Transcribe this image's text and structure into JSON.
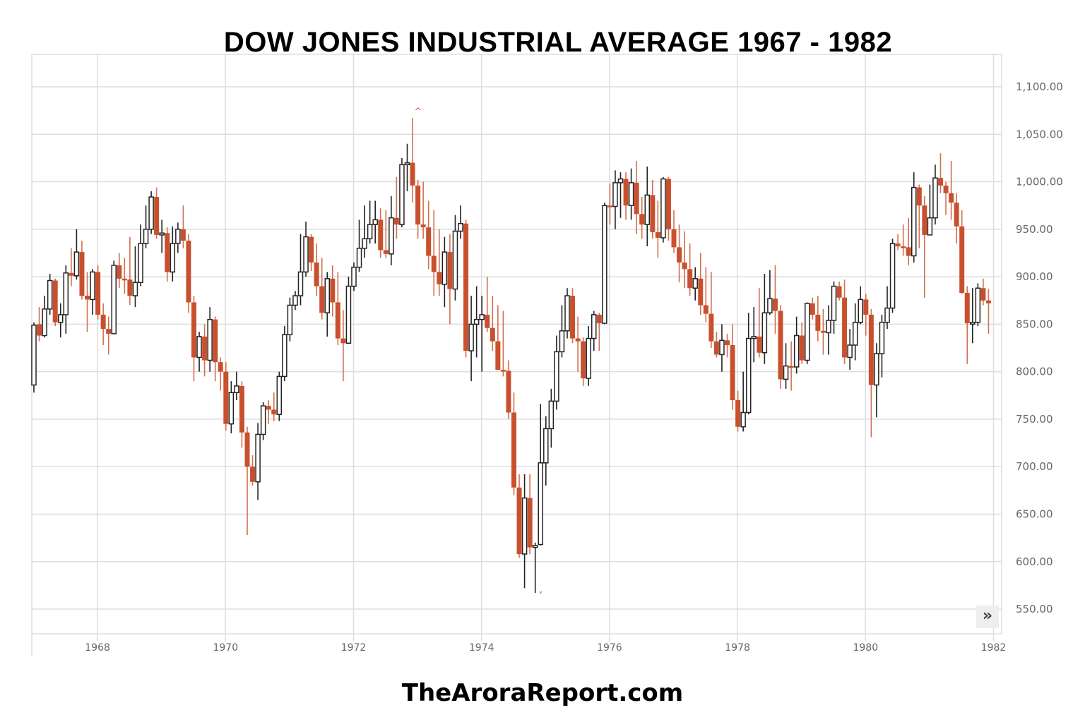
{
  "header": {
    "title": "DOW JONES INDUSTRIAL AVERAGE 1967 - 1982"
  },
  "footer": {
    "text": "TheAroraReport.com"
  },
  "controls": {
    "scroll_right_icon": "double-chevron-right-icon",
    "scroll_right_glyph": "»"
  },
  "colors": {
    "up_stroke": "#222222",
    "up_fill": "#ffffff",
    "down": "#c8502f",
    "down_wick": "#d2704f",
    "grid": "#dddddd",
    "axis_text": "#666666"
  },
  "chart_data": {
    "type": "candlestick",
    "title": "DOW JONES INDUSTRIAL AVERAGE 1967 - 1982",
    "xlabel": "",
    "ylabel": "",
    "interval": "monthly",
    "ylim": [
      530,
      1130
    ],
    "y_ticks": [
      "1,100.00",
      "1,050.00",
      "1,000.00",
      "950.00",
      "900.00",
      "850.00",
      "800.00",
      "750.00",
      "700.00",
      "650.00",
      "600.00",
      "550.00"
    ],
    "y_tick_values": [
      1100,
      1050,
      1000,
      950,
      900,
      850,
      800,
      750,
      700,
      650,
      600,
      550
    ],
    "x_ticks": [
      "1968",
      "1970",
      "1972",
      "1974",
      "1976",
      "1978",
      "1980",
      "1982"
    ],
    "grid": true,
    "annotations": [
      {
        "type": "high-marker",
        "label": "^",
        "near": "1973-01",
        "value": 1067
      },
      {
        "type": "low-marker",
        "label": "˅",
        "near": "1974-12",
        "value": 570
      }
    ],
    "candles": [
      [
        786,
        849,
        778,
        852
      ],
      [
        850,
        838,
        832,
        868
      ],
      [
        838,
        866,
        836,
        880
      ],
      [
        866,
        896,
        860,
        903
      ],
      [
        896,
        852,
        848,
        898
      ],
      [
        852,
        860,
        836,
        872
      ],
      [
        860,
        904,
        840,
        912
      ],
      [
        904,
        901,
        890,
        930
      ],
      [
        901,
        926,
        897,
        950
      ],
      [
        926,
        880,
        876,
        938
      ],
      [
        880,
        876,
        842,
        905
      ],
      [
        876,
        905,
        860,
        908
      ],
      [
        905,
        860,
        855,
        912
      ],
      [
        860,
        845,
        828,
        872
      ],
      [
        845,
        840,
        818,
        858
      ],
      [
        840,
        912,
        840,
        917
      ],
      [
        912,
        898,
        888,
        925
      ],
      [
        898,
        897,
        882,
        920
      ],
      [
        897,
        880,
        870,
        942
      ],
      [
        880,
        894,
        868,
        932
      ],
      [
        894,
        935,
        890,
        955
      ],
      [
        935,
        950,
        930,
        975
      ],
      [
        950,
        984,
        945,
        990
      ],
      [
        984,
        944,
        940,
        994
      ],
      [
        944,
        946,
        925,
        960
      ],
      [
        946,
        905,
        895,
        952
      ],
      [
        905,
        935,
        895,
        953
      ],
      [
        935,
        950,
        925,
        957
      ],
      [
        950,
        938,
        930,
        975
      ],
      [
        938,
        873,
        862,
        945
      ],
      [
        873,
        815,
        790,
        880
      ],
      [
        815,
        837,
        800,
        842
      ],
      [
        837,
        812,
        795,
        850
      ],
      [
        812,
        855,
        800,
        868
      ],
      [
        855,
        810,
        790,
        858
      ],
      [
        810,
        800,
        780,
        815
      ],
      [
        800,
        745,
        738,
        810
      ],
      [
        745,
        778,
        735,
        790
      ],
      [
        778,
        785,
        770,
        800
      ],
      [
        785,
        736,
        720,
        790
      ],
      [
        736,
        700,
        628,
        742
      ],
      [
        700,
        684,
        680,
        712
      ],
      [
        684,
        734,
        665,
        746
      ],
      [
        734,
        764,
        728,
        768
      ],
      [
        764,
        760,
        745,
        770
      ],
      [
        760,
        755,
        748,
        778
      ],
      [
        755,
        795,
        748,
        800
      ],
      [
        795,
        839,
        790,
        848
      ],
      [
        839,
        870,
        832,
        878
      ],
      [
        870,
        880,
        865,
        885
      ],
      [
        880,
        905,
        870,
        945
      ],
      [
        905,
        942,
        900,
        958
      ],
      [
        942,
        915,
        906,
        945
      ],
      [
        915,
        890,
        880,
        935
      ],
      [
        890,
        862,
        855,
        920
      ],
      [
        862,
        898,
        837,
        905
      ],
      [
        898,
        873,
        858,
        912
      ],
      [
        873,
        835,
        828,
        905
      ],
      [
        835,
        830,
        790,
        865
      ],
      [
        830,
        890,
        830,
        900
      ],
      [
        890,
        910,
        885,
        915
      ],
      [
        910,
        930,
        905,
        960
      ],
      [
        930,
        940,
        920,
        975
      ],
      [
        940,
        955,
        935,
        980
      ],
      [
        955,
        960,
        935,
        980
      ],
      [
        960,
        928,
        920,
        972
      ],
      [
        928,
        924,
        920,
        970
      ],
      [
        924,
        962,
        912,
        985
      ],
      [
        962,
        955,
        940,
        1005
      ],
      [
        955,
        1018,
        952,
        1025
      ],
      [
        1018,
        1020,
        990,
        1040
      ],
      [
        1020,
        996,
        978,
        1067
      ],
      [
        996,
        955,
        940,
        1002
      ],
      [
        955,
        952,
        940,
        1000
      ],
      [
        952,
        922,
        908,
        980
      ],
      [
        922,
        905,
        880,
        970
      ],
      [
        905,
        892,
        880,
        950
      ],
      [
        892,
        926,
        868,
        942
      ],
      [
        926,
        887,
        850,
        945
      ],
      [
        887,
        948,
        875,
        965
      ],
      [
        948,
        956,
        940,
        975
      ],
      [
        956,
        822,
        815,
        960
      ],
      [
        822,
        850,
        790,
        880
      ],
      [
        850,
        855,
        815,
        890
      ],
      [
        855,
        860,
        800,
        880
      ],
      [
        860,
        846,
        842,
        900
      ],
      [
        846,
        832,
        822,
        880
      ],
      [
        832,
        802,
        808,
        870
      ],
      [
        802,
        801,
        795,
        864
      ],
      [
        801,
        757,
        750,
        812
      ],
      [
        757,
        678,
        670,
        778
      ],
      [
        678,
        608,
        604,
        692
      ],
      [
        608,
        667,
        572,
        692
      ],
      [
        667,
        615,
        608,
        692
      ],
      [
        615,
        617,
        567,
        620
      ],
      [
        618,
        704,
        617,
        766
      ],
      [
        704,
        740,
        680,
        753
      ],
      [
        740,
        769,
        720,
        782
      ],
      [
        769,
        821,
        760,
        838
      ],
      [
        821,
        843,
        815,
        870
      ],
      [
        843,
        880,
        835,
        888
      ],
      [
        880,
        835,
        830,
        888
      ],
      [
        835,
        832,
        800,
        858
      ],
      [
        832,
        793,
        785,
        836
      ],
      [
        793,
        835,
        785,
        848
      ],
      [
        835,
        860,
        822,
        864
      ],
      [
        860,
        851,
        822,
        862
      ],
      [
        851,
        975,
        850,
        978
      ],
      [
        975,
        974,
        955,
        998
      ],
      [
        974,
        999,
        950,
        1012
      ],
      [
        999,
        1003,
        962,
        1010
      ],
      [
        1003,
        975,
        960,
        1010
      ],
      [
        975,
        999,
        960,
        1014
      ],
      [
        999,
        966,
        945,
        1022
      ],
      [
        966,
        955,
        940,
        984
      ],
      [
        955,
        986,
        932,
        1016
      ],
      [
        986,
        947,
        940,
        1002
      ],
      [
        947,
        941,
        920,
        980
      ],
      [
        941,
        1003,
        936,
        1005
      ],
      [
        1003,
        950,
        938,
        1005
      ],
      [
        950,
        931,
        925,
        970
      ],
      [
        931,
        915,
        894,
        955
      ],
      [
        915,
        908,
        888,
        948
      ],
      [
        908,
        888,
        880,
        935
      ],
      [
        888,
        898,
        875,
        910
      ],
      [
        898,
        870,
        860,
        925
      ],
      [
        870,
        861,
        852,
        910
      ],
      [
        861,
        832,
        825,
        905
      ],
      [
        832,
        818,
        815,
        842
      ],
      [
        818,
        833,
        800,
        850
      ],
      [
        833,
        828,
        815,
        840
      ],
      [
        828,
        770,
        760,
        850
      ],
      [
        770,
        742,
        737,
        780
      ],
      [
        742,
        757,
        737,
        800
      ],
      [
        757,
        835,
        755,
        862
      ],
      [
        835,
        837,
        810,
        868
      ],
      [
        837,
        820,
        815,
        888
      ],
      [
        820,
        862,
        808,
        903
      ],
      [
        862,
        877,
        860,
        907
      ],
      [
        877,
        864,
        840,
        912
      ],
      [
        864,
        792,
        782,
        870
      ],
      [
        792,
        806,
        782,
        830
      ],
      [
        806,
        805,
        780,
        832
      ],
      [
        805,
        838,
        798,
        858
      ],
      [
        838,
        812,
        808,
        852
      ],
      [
        812,
        872,
        808,
        873
      ],
      [
        872,
        860,
        855,
        878
      ],
      [
        860,
        843,
        832,
        880
      ],
      [
        843,
        841,
        818,
        866
      ],
      [
        841,
        854,
        818,
        870
      ],
      [
        854,
        890,
        840,
        895
      ],
      [
        890,
        878,
        875,
        895
      ],
      [
        878,
        815,
        808,
        897
      ],
      [
        815,
        828,
        802,
        845
      ],
      [
        828,
        852,
        812,
        872
      ],
      [
        852,
        876,
        850,
        890
      ],
      [
        876,
        860,
        838,
        882
      ],
      [
        860,
        786,
        731,
        866
      ],
      [
        786,
        819,
        752,
        830
      ],
      [
        819,
        852,
        794,
        860
      ],
      [
        852,
        867,
        845,
        890
      ],
      [
        867,
        935,
        862,
        940
      ],
      [
        935,
        932,
        928,
        945
      ],
      [
        932,
        931,
        922,
        955
      ],
      [
        931,
        922,
        912,
        962
      ],
      [
        922,
        994,
        915,
        1010
      ],
      [
        994,
        975,
        930,
        997
      ],
      [
        975,
        944,
        878,
        985
      ],
      [
        944,
        962,
        945,
        997
      ],
      [
        962,
        1004,
        955,
        1018
      ],
      [
        1004,
        996,
        988,
        1030
      ],
      [
        996,
        988,
        965,
        1000
      ],
      [
        988,
        978,
        960,
        1022
      ],
      [
        978,
        953,
        935,
        988
      ],
      [
        953,
        883,
        882,
        970
      ],
      [
        883,
        851,
        808,
        890
      ],
      [
        851,
        852,
        830,
        888
      ],
      [
        852,
        888,
        848,
        893
      ],
      [
        888,
        875,
        870,
        898
      ],
      [
        875,
        872,
        840,
        887
      ]
    ]
  }
}
